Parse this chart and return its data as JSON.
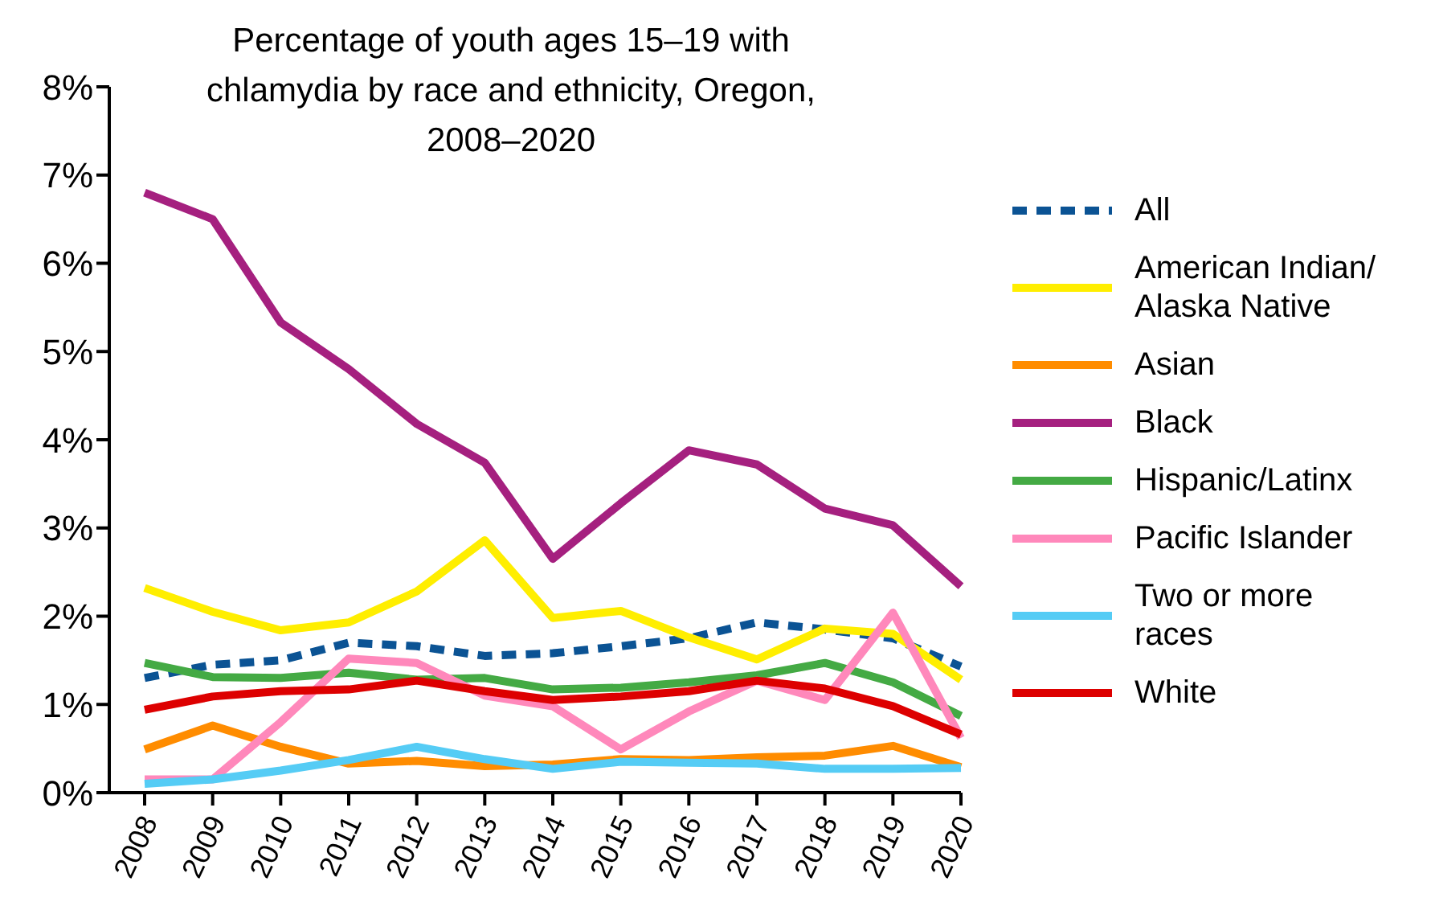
{
  "chart_data": {
    "type": "line",
    "title": "Percentage of youth ages 15–19 with chlamydia by race and ethnicity, Oregon, 2008–2020",
    "categories": [
      "2008",
      "2009",
      "2010",
      "2011",
      "2012",
      "2013",
      "2014",
      "2015",
      "2016",
      "2017",
      "2018",
      "2019",
      "2020"
    ],
    "ylim": [
      0,
      8
    ],
    "yticks": [
      {
        "value": 0,
        "label": "0%"
      },
      {
        "value": 1,
        "label": "1%"
      },
      {
        "value": 2,
        "label": "2%"
      },
      {
        "value": 3,
        "label": "3%"
      },
      {
        "value": 4,
        "label": "4%"
      },
      {
        "value": 5,
        "label": "5%"
      },
      {
        "value": 6,
        "label": "6%"
      },
      {
        "value": 7,
        "label": "7%"
      },
      {
        "value": 8,
        "label": "8%"
      }
    ],
    "grid": false,
    "legend": "right",
    "marker": "none",
    "series": [
      {
        "name": "All",
        "color": "#0b5394",
        "line_style": "dashed",
        "values": [
          1.3,
          1.45,
          1.5,
          1.7,
          1.66,
          1.55,
          1.58,
          1.66,
          1.75,
          1.93,
          1.85,
          1.75,
          1.43
        ]
      },
      {
        "name": "American Indian/Alaska Native",
        "color": "#ffee00",
        "values": [
          2.32,
          2.05,
          1.84,
          1.93,
          2.28,
          2.86,
          1.98,
          2.06,
          1.76,
          1.51,
          1.86,
          1.8,
          1.28
        ]
      },
      {
        "name": "Asian",
        "color": "#ff8c00",
        "values": [
          0.49,
          0.76,
          0.52,
          0.33,
          0.36,
          0.3,
          0.32,
          0.38,
          0.37,
          0.4,
          0.42,
          0.53,
          0.29
        ]
      },
      {
        "name": "Black",
        "color": "#a5207f",
        "values": [
          6.8,
          6.5,
          5.33,
          4.8,
          4.18,
          3.74,
          2.65,
          3.28,
          3.88,
          3.72,
          3.22,
          3.03,
          2.34
        ]
      },
      {
        "name": "Hispanic/Latinx",
        "color": "#44aa44",
        "values": [
          1.47,
          1.31,
          1.3,
          1.36,
          1.28,
          1.3,
          1.17,
          1.19,
          1.25,
          1.33,
          1.47,
          1.25,
          0.87
        ]
      },
      {
        "name": "Pacific Islander",
        "color": "#ff88bb",
        "values": [
          0.15,
          0.15,
          0.8,
          1.52,
          1.47,
          1.1,
          0.98,
          0.49,
          0.92,
          1.27,
          1.05,
          2.04,
          0.62
        ]
      },
      {
        "name": "Two or more races",
        "color": "#55ccf5",
        "values": [
          0.1,
          0.15,
          0.25,
          0.37,
          0.52,
          0.38,
          0.27,
          0.35,
          0.34,
          0.33,
          0.27,
          0.27,
          0.28
        ]
      },
      {
        "name": "White",
        "color": "#dd0000",
        "values": [
          0.94,
          1.09,
          1.15,
          1.17,
          1.27,
          1.15,
          1.05,
          1.09,
          1.15,
          1.27,
          1.18,
          0.98,
          0.66
        ]
      }
    ]
  }
}
